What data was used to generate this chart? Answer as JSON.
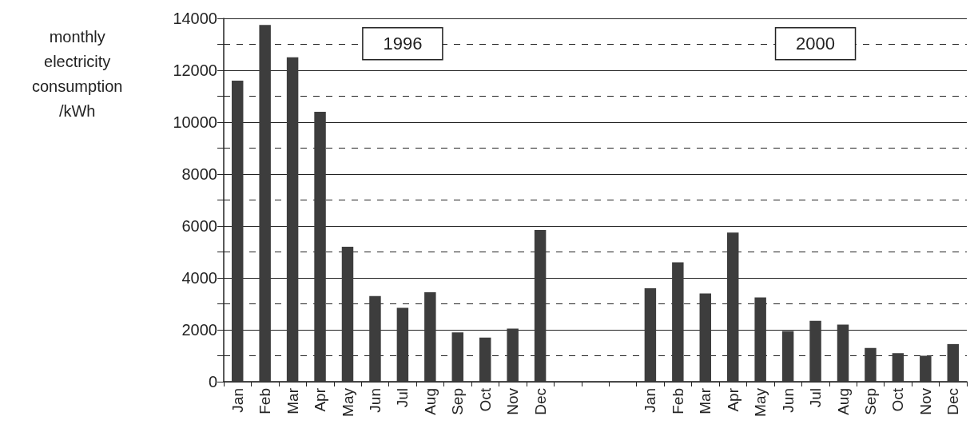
{
  "chart_data": {
    "type": "bar",
    "ylabel": "monthly\nelectricity\nconsumption\n/kWh",
    "categories": [
      "Jan",
      "Feb",
      "Mar",
      "Apr",
      "May",
      "Jun",
      "Jul",
      "Aug",
      "Sep",
      "Oct",
      "Nov",
      "Dec",
      null,
      null,
      null,
      "Jan",
      "Feb",
      "Mar",
      "Apr",
      "May",
      "Jun",
      "Jul",
      "Aug",
      "Sep",
      "Oct",
      "Nov",
      "Dec"
    ],
    "values": [
      11600,
      13750,
      12500,
      10400,
      5200,
      3300,
      2850,
      3450,
      1900,
      1700,
      2050,
      5850,
      null,
      null,
      null,
      3600,
      4600,
      3400,
      5750,
      3250,
      1950,
      2350,
      2200,
      1300,
      1100,
      1000,
      1450
    ],
    "color": "#3d3d3d",
    "ylim": [
      0,
      14000
    ],
    "yticks": [
      0,
      {
        "value": 1000,
        "label": null
      },
      2000,
      {
        "value": 3000,
        "label": null
      },
      4000,
      {
        "value": 5000,
        "label": null
      },
      6000,
      {
        "value": 7000,
        "label": null
      },
      8000,
      {
        "value": 9000,
        "label": null
      },
      10000,
      {
        "value": 11000,
        "label": null
      },
      12000,
      {
        "value": 13000,
        "label": null
      },
      14000
    ],
    "grid": true,
    "annotations": [
      "1996",
      "2000"
    ]
  }
}
